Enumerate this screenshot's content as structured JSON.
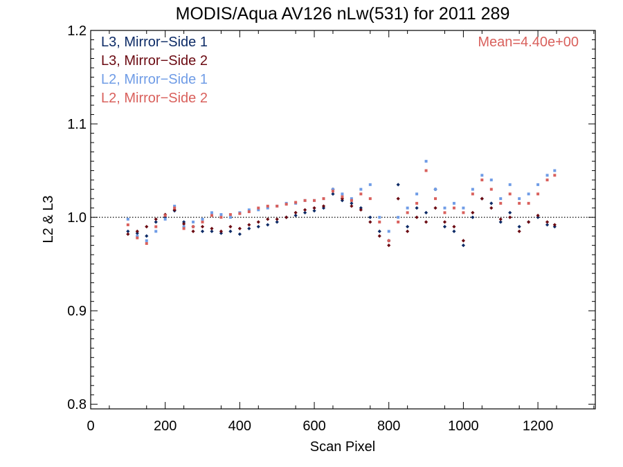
{
  "chart_data": {
    "type": "scatter",
    "title": "MODIS/Aqua AV126 nLw(531) for 2011 289",
    "xlabel": "Scan Pixel",
    "ylabel": "L2 & L3",
    "xlim": [
      0,
      1354
    ],
    "ylim": [
      0.795,
      1.2
    ],
    "xticks": [
      "0",
      "200",
      "400",
      "600",
      "800",
      "1000",
      "1200"
    ],
    "yticks": [
      "0.8",
      "0.9",
      "1.0",
      "1.1",
      "1.2"
    ],
    "reference_line": 1.0,
    "annotation": {
      "text": "Mean=4.40e+00",
      "color": "#d9605c"
    },
    "legend_position": "top-left",
    "series": [
      {
        "name": "L3, Mirror−Side 1",
        "color": "#0d2b66",
        "x": [
          100,
          125,
          150,
          175,
          200,
          225,
          250,
          275,
          300,
          325,
          350,
          375,
          400,
          425,
          450,
          475,
          500,
          525,
          550,
          575,
          600,
          625,
          650,
          675,
          700,
          725,
          750,
          775,
          800,
          825,
          850,
          875,
          900,
          925,
          950,
          975,
          1000,
          1025,
          1050,
          1075,
          1100,
          1125,
          1150,
          1175,
          1200,
          1225,
          1245
        ],
        "y": [
          0.985,
          0.983,
          0.98,
          0.995,
          1.0,
          1.007,
          0.995,
          0.99,
          0.985,
          0.985,
          0.983,
          0.985,
          0.982,
          0.988,
          0.99,
          0.992,
          0.995,
          1.0,
          1.002,
          1.005,
          1.007,
          1.01,
          1.025,
          1.018,
          1.015,
          1.01,
          1.0,
          0.985,
          0.975,
          1.035,
          0.99,
          1.01,
          1.005,
          1.03,
          0.99,
          0.985,
          0.97,
          1.0,
          1.02,
          1.015,
          0.995,
          1.005,
          0.99,
          0.995,
          1.0,
          0.992,
          0.99
        ]
      },
      {
        "name": "L3, Mirror−Side 2",
        "color": "#6b0a12",
        "x": [
          100,
          125,
          150,
          175,
          200,
          225,
          250,
          275,
          300,
          325,
          350,
          375,
          400,
          425,
          450,
          475,
          500,
          525,
          550,
          575,
          600,
          625,
          650,
          675,
          700,
          725,
          750,
          775,
          800,
          825,
          850,
          875,
          900,
          925,
          950,
          975,
          1000,
          1025,
          1050,
          1075,
          1100,
          1125,
          1150,
          1175,
          1200,
          1225,
          1245
        ],
        "y": [
          0.982,
          0.985,
          0.99,
          0.998,
          1.003,
          1.008,
          0.993,
          0.985,
          0.99,
          0.988,
          0.985,
          0.99,
          0.988,
          0.992,
          0.995,
          0.998,
          0.998,
          1.0,
          1.005,
          1.008,
          1.01,
          1.012,
          1.03,
          1.02,
          1.012,
          1.008,
          0.995,
          0.98,
          0.97,
          1.02,
          0.985,
          1.0,
          0.995,
          1.01,
          0.995,
          0.99,
          0.975,
          1.005,
          1.02,
          1.01,
          0.998,
          1.0,
          0.985,
          0.995,
          1.002,
          0.995,
          0.992
        ]
      },
      {
        "name": "L2, Mirror−Side 1",
        "color": "#6f9ce6",
        "x": [
          100,
          125,
          150,
          175,
          200,
          225,
          250,
          275,
          300,
          325,
          350,
          375,
          400,
          425,
          450,
          475,
          500,
          525,
          550,
          575,
          600,
          625,
          650,
          675,
          700,
          725,
          750,
          775,
          800,
          825,
          850,
          875,
          900,
          925,
          950,
          975,
          1000,
          1025,
          1050,
          1075,
          1100,
          1125,
          1150,
          1175,
          1200,
          1225,
          1245
        ],
        "y": [
          0.998,
          0.98,
          0.975,
          0.985,
          0.998,
          1.012,
          0.99,
          0.995,
          0.998,
          1.005,
          1.003,
          1.0,
          1.005,
          1.008,
          1.008,
          1.01,
          1.012,
          1.015,
          1.015,
          1.018,
          1.018,
          1.02,
          1.03,
          1.025,
          1.02,
          1.03,
          1.035,
          1.0,
          0.985,
          1.0,
          1.01,
          1.025,
          1.06,
          1.03,
          1.01,
          1.015,
          1.01,
          1.03,
          1.045,
          1.04,
          1.02,
          1.035,
          1.02,
          1.025,
          1.035,
          1.045,
          1.05
        ]
      },
      {
        "name": "L2, Mirror−Side 2",
        "color": "#d9605c",
        "x": [
          100,
          125,
          150,
          175,
          200,
          225,
          250,
          275,
          300,
          325,
          350,
          375,
          400,
          425,
          450,
          475,
          500,
          525,
          550,
          575,
          600,
          625,
          650,
          675,
          700,
          725,
          750,
          775,
          800,
          825,
          850,
          875,
          900,
          925,
          950,
          975,
          1000,
          1025,
          1050,
          1075,
          1100,
          1125,
          1150,
          1175,
          1200,
          1225,
          1245
        ],
        "y": [
          0.992,
          0.978,
          0.972,
          0.99,
          1.002,
          1.01,
          0.988,
          0.99,
          0.995,
          1.002,
          1.0,
          1.003,
          1.004,
          1.006,
          1.01,
          1.012,
          1.012,
          1.014,
          1.016,
          1.018,
          1.018,
          1.02,
          1.028,
          1.022,
          1.018,
          1.025,
          1.02,
          0.995,
          0.975,
          0.995,
          1.005,
          1.015,
          1.05,
          1.02,
          1.005,
          1.01,
          1.005,
          1.025,
          1.04,
          1.03,
          1.015,
          1.025,
          1.015,
          1.015,
          1.025,
          1.04,
          1.045
        ]
      }
    ]
  }
}
